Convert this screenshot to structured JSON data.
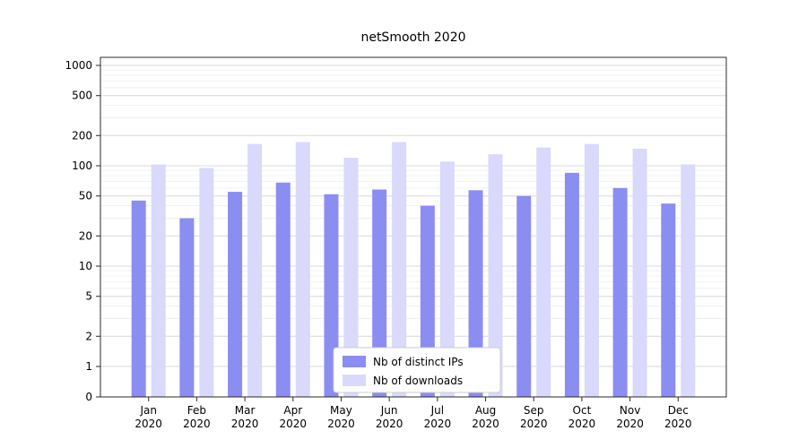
{
  "title": "netSmooth 2020",
  "chart_data": {
    "type": "bar",
    "title": "netSmooth 2020",
    "categories": [
      "Jan",
      "Feb",
      "Mar",
      "Apr",
      "May",
      "Jun",
      "Jul",
      "Aug",
      "Sep",
      "Oct",
      "Nov",
      "Dec"
    ],
    "category_year": "2020",
    "series": [
      {
        "name": "Nb of distinct IPs",
        "color": "#8b8df1",
        "values": [
          45,
          30,
          55,
          68,
          52,
          58,
          40,
          57,
          50,
          85,
          60,
          42
        ]
      },
      {
        "name": "Nb of downloads",
        "color": "#d8d9fb",
        "values": [
          103,
          95,
          165,
          172,
          120,
          172,
          110,
          130,
          152,
          165,
          148,
          103
        ]
      }
    ],
    "yscale": "symlog",
    "yticks": [
      0,
      1,
      2,
      5,
      10,
      20,
      50,
      100,
      200,
      500,
      1000
    ],
    "ylim": [
      0,
      1200
    ],
    "grid": true,
    "legend_position": "lower center",
    "colors": {
      "axis": "#2b2b2b",
      "major_grid": "#d8d8d8",
      "minor_grid": "#efefef",
      "legend_border": "#cccccc",
      "legend_bg": "#ffffff"
    }
  }
}
